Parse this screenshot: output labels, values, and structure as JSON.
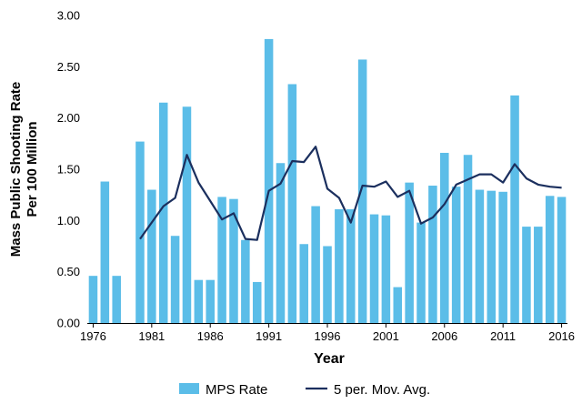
{
  "chart_data": {
    "type": "bar",
    "xlabel": "Year",
    "ylabel_lines": [
      "Mass Public Shooting Rate",
      "Per 100 Million"
    ],
    "ylim": [
      0,
      3
    ],
    "yticks": [
      "0.00",
      "0.50",
      "1.00",
      "1.50",
      "2.00",
      "2.50",
      "3.00"
    ],
    "xtick_labels": [
      "1976",
      "1981",
      "1986",
      "1991",
      "1996",
      "2001",
      "2006",
      "2011",
      "2016"
    ],
    "x": [
      1976,
      1977,
      1978,
      1979,
      1980,
      1981,
      1982,
      1983,
      1984,
      1985,
      1986,
      1987,
      1988,
      1989,
      1990,
      1991,
      1992,
      1993,
      1994,
      1995,
      1996,
      1997,
      1998,
      1999,
      2000,
      2001,
      2002,
      2003,
      2004,
      2005,
      2006,
      2007,
      2008,
      2009,
      2010,
      2011,
      2012,
      2013,
      2014,
      2015,
      2016
    ],
    "series": [
      {
        "name": "MPS Rate",
        "type": "bar",
        "color": "#5bbde8",
        "values": [
          0.46,
          1.38,
          0.46,
          null,
          1.77,
          1.3,
          2.15,
          0.85,
          2.11,
          0.42,
          0.42,
          1.23,
          1.21,
          0.81,
          0.4,
          2.77,
          1.56,
          2.33,
          0.77,
          1.14,
          0.75,
          1.11,
          1.11,
          2.57,
          1.06,
          1.05,
          0.35,
          1.37,
          0.98,
          1.34,
          1.66,
          1.33,
          1.64,
          1.3,
          1.29,
          1.28,
          2.22,
          0.94,
          0.94,
          1.24,
          1.23
        ]
      },
      {
        "name": "5 per. Mov. Avg.",
        "type": "line",
        "color": "#1b2f5e",
        "values": [
          null,
          null,
          null,
          null,
          0.82,
          0.98,
          1.14,
          1.22,
          1.64,
          1.37,
          1.19,
          1.01,
          1.07,
          0.82,
          0.81,
          1.29,
          1.36,
          1.58,
          1.57,
          1.72,
          1.31,
          1.22,
          0.98,
          1.34,
          1.33,
          1.38,
          1.23,
          1.29,
          0.97,
          1.03,
          1.16,
          1.35,
          1.4,
          1.45,
          1.45,
          1.37,
          1.55,
          1.41,
          1.35,
          1.33,
          1.32
        ]
      }
    ],
    "legend_position": "bottom",
    "grid": false
  }
}
